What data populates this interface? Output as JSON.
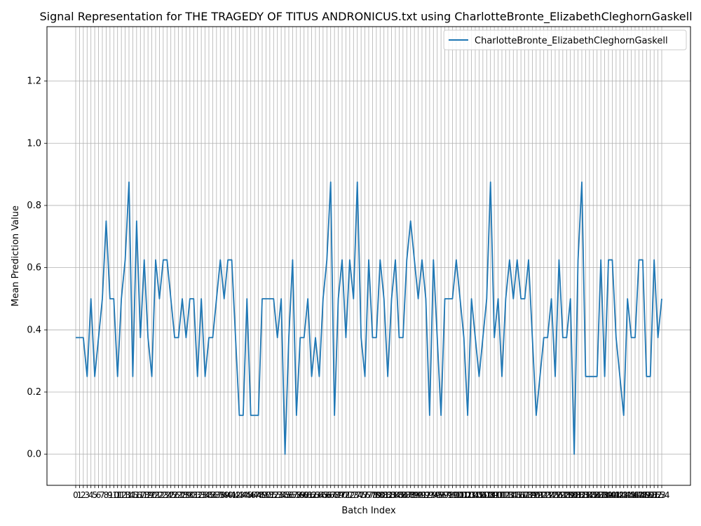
{
  "chart_data": {
    "type": "line",
    "title": "Signal Representation for THE TRAGEDY OF TITUS ANDRONICUS.txt using CharlotteBronte_ElizabethCleghornGaskell",
    "xlabel": "Batch Index",
    "ylabel": "Mean Prediction Value",
    "ylim": [
      -0.1,
      1.375
    ],
    "yticks": [
      0.0,
      0.2,
      0.4,
      0.6,
      0.8,
      1.0,
      1.2
    ],
    "grid": true,
    "legend_position": "top-right",
    "series": [
      {
        "name": "CharlotteBronte_ElizabethCleghornGaskell",
        "color": "#1f77b4",
        "values": [
          0.375,
          0.375,
          0.375,
          0.25,
          0.5,
          0.25,
          0.375,
          0.5,
          0.75,
          0.5,
          0.5,
          0.25,
          0.5,
          0.625,
          0.875,
          0.25,
          0.75,
          0.375,
          0.625,
          0.375,
          0.25,
          0.625,
          0.5,
          0.625,
          0.625,
          0.5,
          0.375,
          0.375,
          0.5,
          0.375,
          0.5,
          0.5,
          0.25,
          0.5,
          0.25,
          0.375,
          0.375,
          0.5,
          0.625,
          0.5,
          0.625,
          0.625,
          0.375,
          0.125,
          0.125,
          0.5,
          0.125,
          0.125,
          0.125,
          0.5,
          0.5,
          0.5,
          0.5,
          0.375,
          0.5,
          0.0,
          0.375,
          0.625,
          0.125,
          0.375,
          0.375,
          0.5,
          0.25,
          0.375,
          0.25,
          0.5,
          0.625,
          0.875,
          0.125,
          0.5,
          0.625,
          0.375,
          0.625,
          0.5,
          0.875,
          0.375,
          0.25,
          0.625,
          0.375,
          0.375,
          0.625,
          0.5,
          0.25,
          0.5,
          0.625,
          0.375,
          0.375,
          0.625,
          0.75,
          0.625,
          0.5,
          0.625,
          0.5,
          0.125,
          0.625,
          0.375,
          0.125,
          0.5,
          0.5,
          0.5,
          0.625,
          0.5,
          0.375,
          0.125,
          0.5,
          0.375,
          0.25,
          0.375,
          0.5,
          0.875,
          0.375,
          0.5,
          0.25,
          0.5,
          0.625,
          0.5,
          0.625,
          0.5,
          0.5,
          0.625,
          0.375,
          0.125,
          0.25,
          0.375,
          0.375,
          0.5,
          0.25,
          0.625,
          0.375,
          0.375,
          0.5,
          0.0,
          0.625,
          0.875,
          0.25,
          0.25,
          0.25,
          0.25,
          0.625,
          0.25,
          0.625,
          0.625,
          0.375,
          0.25,
          0.125,
          0.5,
          0.375,
          0.375,
          0.625,
          0.625,
          0.25,
          0.25,
          0.625,
          0.375,
          0.5
        ]
      }
    ]
  }
}
